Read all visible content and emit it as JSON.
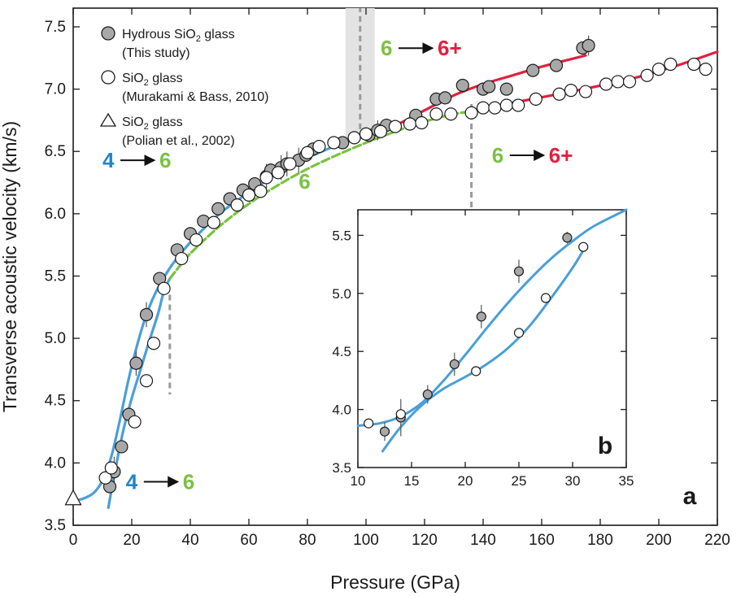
{
  "colors": {
    "fit_blue": "#4a9fd8",
    "fit_red": "#e0213f",
    "fit_green": "#7ac142",
    "marker_gray": "#a8a8a8",
    "label_blue": "#1f86c7",
    "label_green": "#7ac142",
    "label_red": "#e0213f",
    "transition_dash": "#9a9a9a",
    "shade": "#e3e3e3"
  },
  "chart_data": [
    {
      "panel": "a",
      "type": "scatter",
      "xlabel": "Pressure (GPa)",
      "ylabel": "Transverse acoustic velocity (km/s)",
      "xlim": [
        0,
        220
      ],
      "ylim": [
        3.5,
        7.65
      ],
      "xticks": [
        "0",
        "20",
        "40",
        "60",
        "80",
        "100",
        "120",
        "140",
        "160",
        "180",
        "200",
        "220"
      ],
      "yticks": [
        "3.5",
        "4.0",
        "4.5",
        "5.0",
        "5.5",
        "6.0",
        "6.5",
        "7.0",
        "7.5"
      ],
      "legend": {
        "placement": "top-left",
        "entries": [
          {
            "marker": "filled-circle",
            "label": "Hydrous SiO",
            "sub": "2",
            "label_tail": " glass",
            "note": "(This study)"
          },
          {
            "marker": "open-circle",
            "label": "SiO",
            "sub": "2",
            "label_tail": " glass",
            "note": "(Murakami & Bass, 2010)"
          },
          {
            "marker": "open-triangle",
            "label": "SiO",
            "sub": "2",
            "label_tail": " glass",
            "note": "(Polian et al., 2002)"
          }
        ]
      },
      "series": [
        {
          "marker": "filled-circle",
          "points": [
            [
              12.5,
              3.81
            ],
            [
              14,
              3.93
            ],
            [
              16.5,
              4.13
            ],
            [
              19,
              4.39
            ],
            [
              21.5,
              4.8
            ],
            [
              25,
              5.19
            ],
            [
              29.5,
              5.48
            ],
            [
              35.5,
              5.71
            ],
            [
              40,
              5.84
            ],
            [
              44.5,
              5.94
            ],
            [
              49.5,
              6.04
            ],
            [
              53.5,
              6.12
            ],
            [
              58,
              6.19
            ],
            [
              62,
              6.24
            ],
            [
              66,
              6.3
            ],
            [
              67.5,
              6.35
            ],
            [
              71,
              6.37
            ],
            [
              73,
              6.4
            ],
            [
              77,
              6.43
            ],
            [
              79.5,
              6.47
            ],
            [
              82,
              6.52
            ],
            [
              92,
              6.57
            ],
            [
              101,
              6.63
            ],
            [
              104,
              6.67
            ],
            [
              107,
              6.71
            ],
            [
              117,
              6.79
            ],
            [
              124,
              6.92
            ],
            [
              127,
              6.93
            ],
            [
              133,
              7.03
            ],
            [
              140,
              7.0
            ],
            [
              142,
              7.02
            ],
            [
              148,
              7.0
            ],
            [
              157,
              7.15
            ],
            [
              165,
              7.19
            ],
            [
              174,
              7.33
            ],
            [
              176,
              7.35
            ]
          ]
        },
        {
          "marker": "open-circle",
          "points": [
            [
              11,
              3.88
            ],
            [
              13,
              3.96
            ],
            [
              21,
              4.33
            ],
            [
              25,
              4.66
            ],
            [
              27.5,
              4.96
            ],
            [
              31,
              5.4
            ],
            [
              37,
              5.64
            ],
            [
              42,
              5.79
            ],
            [
              48,
              5.93
            ],
            [
              56,
              6.07
            ],
            [
              60,
              6.15
            ],
            [
              64,
              6.18
            ],
            [
              66,
              6.29
            ],
            [
              70,
              6.33
            ],
            [
              74,
              6.4
            ],
            [
              80,
              6.49
            ],
            [
              84,
              6.54
            ],
            [
              89,
              6.57
            ],
            [
              96,
              6.61
            ],
            [
              100,
              6.64
            ],
            [
              105,
              6.66
            ],
            [
              110,
              6.7
            ],
            [
              115,
              6.72
            ],
            [
              119,
              6.73
            ],
            [
              124,
              6.8
            ],
            [
              129,
              6.8
            ],
            [
              136,
              6.81
            ],
            [
              140,
              6.85
            ],
            [
              144,
              6.85
            ],
            [
              148,
              6.87
            ],
            [
              152,
              6.87
            ],
            [
              158,
              6.92
            ],
            [
              166,
              6.96
            ],
            [
              170,
              6.99
            ],
            [
              175,
              6.98
            ],
            [
              182,
              7.04
            ],
            [
              186,
              7.06
            ],
            [
              190,
              7.06
            ],
            [
              196,
              7.11
            ],
            [
              200,
              7.16
            ],
            [
              204,
              7.2
            ],
            [
              212,
              7.2
            ],
            [
              216,
              7.16
            ]
          ]
        },
        {
          "marker": "open-triangle",
          "points": [
            [
              0,
              3.72
            ]
          ]
        }
      ],
      "fit_lines": [
        {
          "color": "blue",
          "points": [
            [
              0,
              3.7
            ],
            [
              3,
              3.71
            ],
            [
              7,
              3.76
            ],
            [
              10,
              3.86
            ],
            [
              13,
              4.05
            ],
            [
              16,
              4.35
            ],
            [
              19,
              4.68
            ],
            [
              22,
              4.96
            ],
            [
              25,
              5.19
            ],
            [
              28,
              5.36
            ],
            [
              31,
              5.49
            ],
            [
              35,
              5.63
            ],
            [
              40,
              5.77
            ],
            [
              45,
              5.89
            ],
            [
              50,
              6.0
            ],
            [
              55,
              6.09
            ],
            [
              60,
              6.17
            ],
            [
              65,
              6.25
            ],
            [
              70,
              6.33
            ],
            [
              75,
              6.4
            ],
            [
              80,
              6.45
            ],
            [
              85,
              6.5
            ],
            [
              90,
              6.55
            ],
            [
              95,
              6.59
            ],
            [
              100,
              6.63
            ]
          ]
        },
        {
          "color": "blue",
          "points": [
            [
              12,
              3.64
            ],
            [
              14,
              3.9
            ],
            [
              17,
              4.25
            ],
            [
              20,
              4.52
            ],
            [
              23,
              4.75
            ],
            [
              26,
              4.98
            ],
            [
              29,
              5.2
            ],
            [
              31,
              5.38
            ],
            [
              33,
              5.48
            ]
          ]
        },
        {
          "color": "green",
          "points": [
            [
              33,
              5.48
            ],
            [
              40,
              5.68
            ],
            [
              50,
              5.9
            ],
            [
              60,
              6.08
            ],
            [
              70,
              6.23
            ],
            [
              80,
              6.36
            ],
            [
              90,
              6.47
            ],
            [
              100,
              6.57
            ],
            [
              110,
              6.66
            ],
            [
              120,
              6.74
            ],
            [
              130,
              6.8
            ],
            [
              136,
              6.82
            ]
          ]
        },
        {
          "color": "red",
          "points": [
            [
              100,
              6.64
            ],
            [
              110,
              6.71
            ],
            [
              120,
              6.83
            ],
            [
              130,
              6.95
            ],
            [
              140,
              7.04
            ],
            [
              150,
              7.11
            ],
            [
              160,
              7.18
            ],
            [
              175,
              7.27
            ]
          ]
        },
        {
          "color": "red",
          "points": [
            [
              136,
              6.82
            ],
            [
              150,
              6.89
            ],
            [
              170,
              6.98
            ],
            [
              190,
              7.08
            ],
            [
              205,
              7.18
            ],
            [
              220,
              7.3
            ]
          ]
        }
      ],
      "error_bars": [
        {
          "x": 14,
          "y": 3.93,
          "dy": 0.12
        },
        {
          "x": 21.5,
          "y": 4.8,
          "dy": 0.1
        },
        {
          "x": 25,
          "y": 5.19,
          "dy": 0.1
        },
        {
          "x": 66,
          "y": 6.3,
          "dy": 0.1
        },
        {
          "x": 71,
          "y": 6.37,
          "dy": 0.1
        },
        {
          "x": 73,
          "y": 6.4,
          "dy": 0.1
        },
        {
          "x": 77,
          "y": 6.43,
          "dy": 0.1
        },
        {
          "x": 104,
          "y": 6.67,
          "dy": 0.08
        },
        {
          "x": 176,
          "y": 7.35,
          "dy": 0.08
        }
      ],
      "shaded_band": {
        "x": [
          93,
          103
        ]
      },
      "transition_markers": [
        {
          "x": 98,
          "y": [
            6.6,
            7.65
          ]
        },
        {
          "x": 136,
          "y": [
            6.88,
            5.75
          ]
        },
        {
          "x": 33,
          "y": [
            5.35,
            4.55
          ]
        }
      ],
      "coordination_labels": [
        {
          "from": "4",
          "to": "6",
          "from_color": "blue",
          "to_color": "green",
          "at": [
            10,
            6.37
          ]
        },
        {
          "from": "4",
          "to": "6",
          "from_color": "blue",
          "to_color": "green",
          "at": [
            18,
            3.79
          ]
        },
        {
          "from": "6",
          "to": "6+",
          "from_color": "green",
          "to_color": "red",
          "at": [
            105,
            7.27
          ]
        },
        {
          "from": "6",
          "to": "6+",
          "from_color": "green",
          "to_color": "red",
          "at": [
            143,
            6.41
          ]
        },
        {
          "label": "6",
          "color": "green",
          "at": [
            77,
            6.2
          ]
        }
      ],
      "panel_label": "a"
    },
    {
      "panel": "b",
      "type": "scatter",
      "xlim": [
        10,
        35
      ],
      "ylim": [
        3.5,
        5.72
      ],
      "xticks": [
        "10",
        "15",
        "20",
        "25",
        "30",
        "35"
      ],
      "yticks": [
        "3.5",
        "4.0",
        "4.5",
        "5.0",
        "5.5"
      ],
      "series": [
        {
          "marker": "filled-circle",
          "points": [
            [
              12.5,
              3.81
            ],
            [
              14,
              3.93
            ],
            [
              16.5,
              4.13
            ],
            [
              19,
              4.39
            ],
            [
              21.5,
              4.8
            ],
            [
              25,
              5.19
            ],
            [
              29.5,
              5.48
            ]
          ]
        },
        {
          "marker": "open-circle",
          "points": [
            [
              11,
              3.88
            ],
            [
              14,
              3.96
            ],
            [
              21,
              4.33
            ],
            [
              25,
              4.66
            ],
            [
              27.5,
              4.96
            ],
            [
              31,
              5.4
            ]
          ]
        }
      ],
      "fit_lines": [
        {
          "color": "blue",
          "points": [
            [
              10,
              3.86
            ],
            [
              12,
              3.88
            ],
            [
              14,
              3.94
            ],
            [
              16,
              4.06
            ],
            [
              18,
              4.25
            ],
            [
              20,
              4.47
            ],
            [
              22,
              4.7
            ],
            [
              24,
              4.92
            ],
            [
              26,
              5.12
            ],
            [
              28,
              5.3
            ],
            [
              30,
              5.45
            ],
            [
              32,
              5.58
            ],
            [
              35,
              5.72
            ]
          ]
        },
        {
          "color": "blue",
          "points": [
            [
              12.3,
              3.64
            ],
            [
              14,
              3.85
            ],
            [
              16,
              4.04
            ],
            [
              18,
              4.18
            ],
            [
              20,
              4.28
            ],
            [
              22,
              4.39
            ],
            [
              24,
              4.53
            ],
            [
              26,
              4.72
            ],
            [
              28,
              4.96
            ],
            [
              30,
              5.22
            ],
            [
              31,
              5.37
            ]
          ]
        }
      ],
      "error_bars": [
        {
          "x": 12.5,
          "y": 3.81,
          "dy": 0.08
        },
        {
          "x": 14,
          "y": 3.93,
          "dy": 0.16
        },
        {
          "x": 16.5,
          "y": 4.13,
          "dy": 0.08
        },
        {
          "x": 19,
          "y": 4.39,
          "dy": 0.1
        },
        {
          "x": 21.5,
          "y": 4.8,
          "dy": 0.1
        },
        {
          "x": 25,
          "y": 5.19,
          "dy": 0.1
        },
        {
          "x": 29.5,
          "y": 5.48,
          "dy": 0.05
        }
      ],
      "panel_label": "b"
    }
  ]
}
